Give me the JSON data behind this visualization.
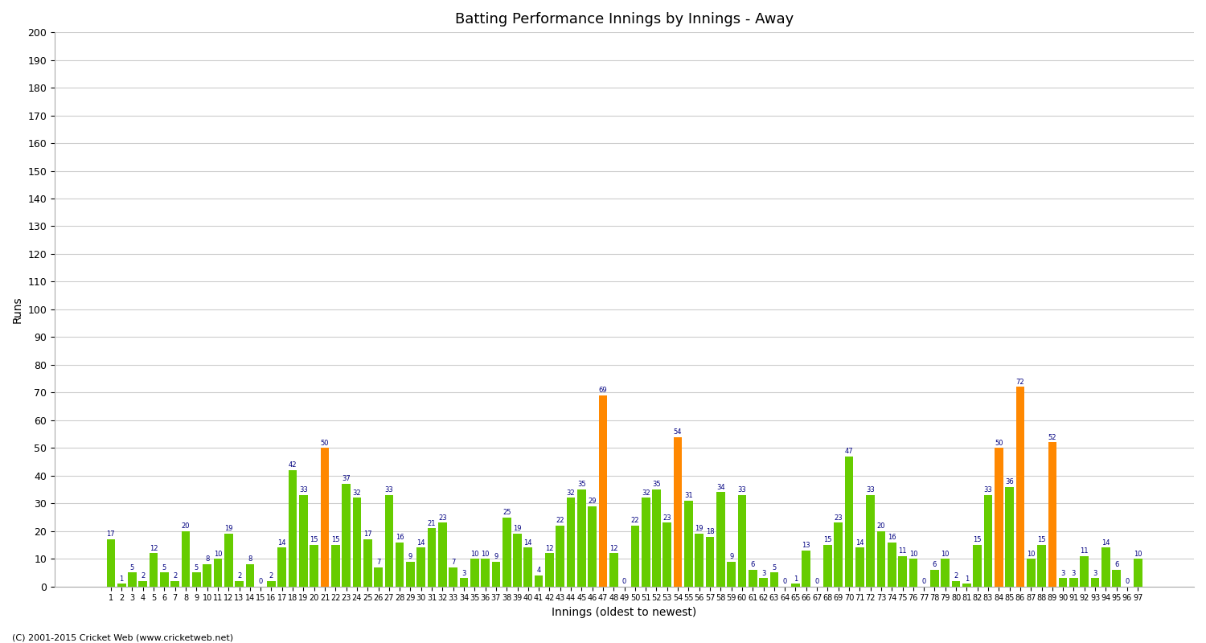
{
  "title": "Batting Performance Innings by Innings - Away",
  "xlabel": "Innings (oldest to newest)",
  "ylabel": "Runs",
  "background_color": "#ffffff",
  "bar_color_green": "#66cc00",
  "bar_color_orange": "#ff8800",
  "ylim": [
    0,
    200
  ],
  "yticks": [
    0,
    10,
    20,
    30,
    40,
    50,
    60,
    70,
    80,
    90,
    100,
    110,
    120,
    130,
    140,
    150,
    160,
    170,
    180,
    190,
    200
  ],
  "innings": [
    1,
    2,
    3,
    4,
    5,
    6,
    7,
    8,
    9,
    10,
    11,
    12,
    13,
    14,
    15,
    16,
    17,
    18,
    19,
    20,
    21,
    22,
    23,
    24,
    25,
    26,
    27,
    28,
    29,
    30,
    31,
    32,
    33,
    34,
    35,
    36,
    37,
    38,
    39,
    40,
    41,
    42,
    43,
    44,
    45,
    46,
    47,
    48,
    49,
    50,
    51,
    52,
    53,
    54,
    55,
    56,
    57,
    58,
    59,
    60,
    61,
    62,
    63,
    64,
    65,
    66,
    67,
    68,
    69,
    70,
    71,
    72,
    73,
    74,
    75,
    76,
    77,
    78,
    79,
    80,
    81,
    82,
    83,
    84,
    85,
    86,
    87,
    88,
    89,
    90,
    91,
    92,
    93,
    94,
    95,
    96,
    97
  ],
  "values": [
    17,
    1,
    5,
    2,
    12,
    5,
    2,
    20,
    5,
    8,
    10,
    19,
    2,
    8,
    0,
    2,
    14,
    42,
    33,
    15,
    50,
    15,
    37,
    32,
    17,
    7,
    33,
    16,
    9,
    14,
    21,
    23,
    7,
    3,
    10,
    10,
    9,
    25,
    19,
    14,
    4,
    12,
    22,
    32,
    35,
    29,
    69,
    12,
    0,
    22,
    32,
    35,
    23,
    54,
    31,
    19,
    18,
    34,
    9,
    33,
    6,
    3,
    5,
    0,
    1,
    13,
    0,
    15,
    23,
    47,
    14,
    33,
    20,
    16,
    11,
    10,
    0,
    6,
    10,
    2,
    1,
    15,
    33,
    50,
    36,
    72,
    10,
    15,
    52,
    3,
    3,
    11,
    3,
    14,
    6,
    0,
    10
  ],
  "is_orange": [
    false,
    false,
    false,
    false,
    false,
    false,
    false,
    false,
    false,
    false,
    false,
    false,
    false,
    false,
    false,
    false,
    false,
    false,
    false,
    false,
    true,
    false,
    false,
    false,
    false,
    false,
    false,
    false,
    false,
    false,
    false,
    false,
    false,
    false,
    false,
    false,
    false,
    false,
    false,
    false,
    false,
    false,
    false,
    false,
    false,
    false,
    true,
    false,
    false,
    false,
    false,
    false,
    false,
    true,
    false,
    false,
    false,
    false,
    false,
    false,
    false,
    false,
    false,
    false,
    false,
    false,
    false,
    false,
    false,
    false,
    false,
    false,
    false,
    false,
    false,
    false,
    false,
    false,
    false,
    false,
    false,
    false,
    false,
    true,
    false,
    true,
    false,
    false,
    true,
    false,
    false,
    false,
    false,
    false,
    false,
    false,
    false
  ],
  "footer": "(C) 2001-2015 Cricket Web (www.cricketweb.net)"
}
